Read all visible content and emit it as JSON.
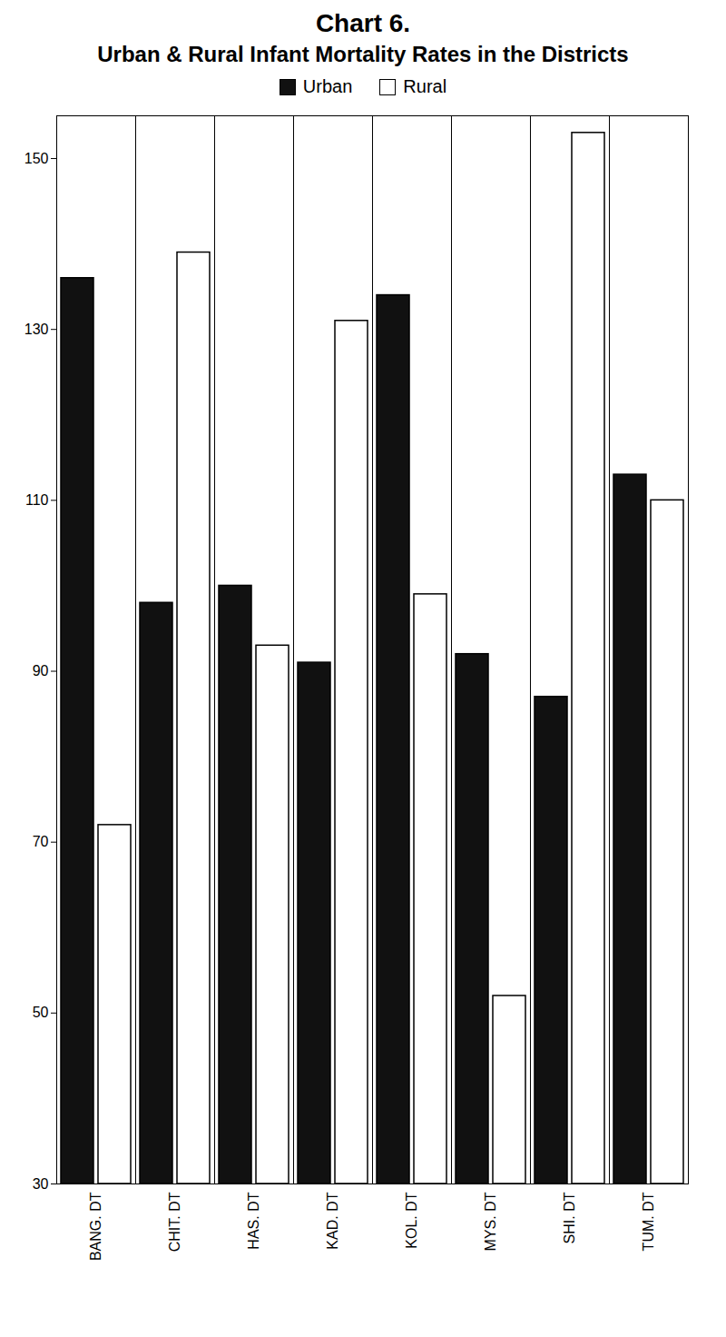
{
  "chart_data": {
    "type": "bar",
    "title": "Chart 6.",
    "subtitle": "Urban & Rural Infant Mortality Rates in the Districts",
    "categories": [
      "BANG. DT",
      "CHIT. DT",
      "HAS. DT",
      "KAD. DT",
      "KOL. DT",
      "MYS. DT",
      "SHI. DT",
      "TUM. DT"
    ],
    "series": [
      {
        "name": "Urban",
        "color": "#111111",
        "values": [
          136,
          98,
          100,
          91,
          134,
          92,
          87,
          113
        ]
      },
      {
        "name": "Rural",
        "color": "#ffffff",
        "values": [
          72,
          139,
          93,
          131,
          99,
          52,
          153,
          110
        ]
      }
    ],
    "ylim": [
      30,
      155
    ],
    "yticks": [
      30,
      50,
      70,
      90,
      110,
      130,
      150
    ],
    "grid": false,
    "legend": "top"
  }
}
